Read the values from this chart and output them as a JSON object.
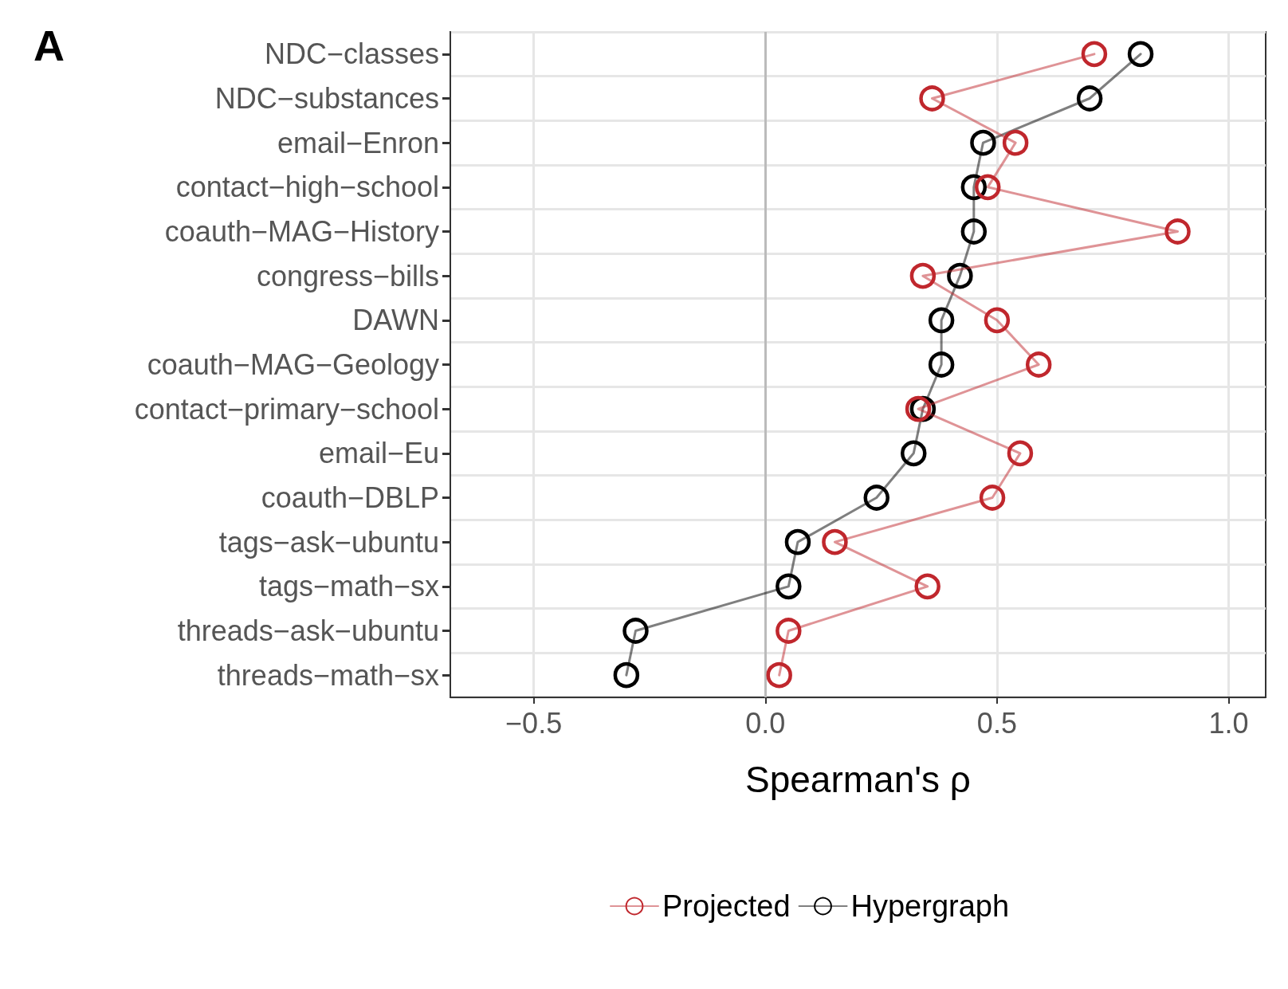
{
  "chart_data": {
    "type": "line",
    "orientation": "horizontal",
    "categories": [
      "NDC−classes",
      "NDC−substances",
      "email−Enron",
      "contact−high−school",
      "coauth−MAG−History",
      "congress−bills",
      "DAWN",
      "coauth−MAG−Geology",
      "contact−primary−school",
      "email−Eu",
      "coauth−DBLP",
      "tags−ask−ubuntu",
      "tags−math−sx",
      "threads−ask−ubuntu",
      "threads−math−sx"
    ],
    "series": [
      {
        "name": "Projected",
        "color": "#c0272d",
        "values": [
          0.71,
          0.36,
          0.54,
          0.48,
          0.89,
          0.34,
          0.5,
          0.59,
          0.33,
          0.55,
          0.49,
          0.15,
          0.35,
          0.05,
          0.03
        ]
      },
      {
        "name": "Hypergraph",
        "color": "#000000",
        "values": [
          0.81,
          0.7,
          0.47,
          0.45,
          0.45,
          0.42,
          0.38,
          0.38,
          0.34,
          0.32,
          0.24,
          0.07,
          0.05,
          -0.28,
          -0.3
        ]
      }
    ],
    "xlabel": "Spearman's ρ",
    "xlim": [
      -0.68,
      1.08
    ],
    "xticks": [
      {
        "value": -0.5,
        "label": "−0.5"
      },
      {
        "value": 0,
        "label": "0.0"
      },
      {
        "value": 0.5,
        "label": "0.5"
      },
      {
        "value": 1,
        "label": "1.0"
      }
    ],
    "ref_lines": [
      {
        "axis": "x",
        "value": 0,
        "color": "#bbbbbb"
      }
    ],
    "annotations": [
      "A"
    ],
    "grid": true,
    "legend": "bottom",
    "marker": "circle",
    "line_style": "solid"
  }
}
